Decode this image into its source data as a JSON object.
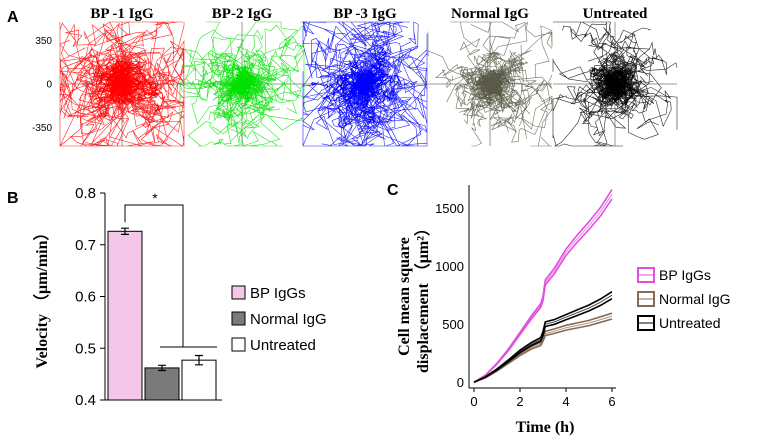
{
  "figure": {
    "panel_a_label": "A",
    "panel_b_label": "B",
    "panel_c_label": "C"
  },
  "chart_data": [
    {
      "panel": "A",
      "type": "scatter",
      "description_kind": "cell trajectory plots",
      "titles": [
        "BP -1 IgG",
        "BP-2 IgG",
        "BP -3 IgG",
        "Normal IgG",
        "Untreated"
      ],
      "colors": [
        "#ff0000",
        "#00e000",
        "#0000ff",
        "#5a5a48",
        "#000000"
      ],
      "spread": [
        1.0,
        0.55,
        0.9,
        0.55,
        0.6
      ],
      "ytick_labels": [
        "350",
        "0",
        "-350"
      ],
      "ytick_values": [
        350,
        0,
        -350
      ],
      "ylim": [
        -500,
        500
      ],
      "xlim": [
        -500,
        500
      ]
    },
    {
      "panel": "B",
      "type": "bar",
      "categories": [
        "BP IgGs",
        "Normal IgG",
        "Untreated"
      ],
      "values": [
        0.726,
        0.462,
        0.477
      ],
      "errors": [
        0.006,
        0.005,
        0.009
      ],
      "colors": [
        "#f4c6e8",
        "#7a7a7a",
        "#ffffff"
      ],
      "ylabel": "Velocity （μm/min）",
      "ylim": [
        0.4,
        0.8
      ],
      "yticks": [
        0.4,
        0.5,
        0.6,
        0.7,
        0.8
      ],
      "ytick_labels": [
        "0.4",
        "0.5",
        "0.6",
        "0.7",
        "0.8"
      ],
      "significance": "*",
      "legend": [
        "BP IgGs",
        "Normal IgG",
        "Untreated"
      ]
    },
    {
      "panel": "C",
      "type": "line",
      "xlabel": "Time (h)",
      "ylabel_line1": "Cell mean square",
      "ylabel_line2": "displacement （μm²）",
      "xlim": [
        0,
        6
      ],
      "ylim": [
        -50,
        1700
      ],
      "xticks": [
        0,
        2,
        4,
        6
      ],
      "xtick_labels": [
        "0",
        "2",
        "4",
        "6"
      ],
      "yticks": [
        0,
        500,
        1000,
        1500
      ],
      "ytick_labels": [
        "0",
        "500",
        "1000",
        "1500"
      ],
      "x": [
        0,
        0.5,
        1,
        1.5,
        2,
        2.5,
        2.9,
        3.0,
        3.1,
        3.5,
        4,
        4.5,
        5,
        5.5,
        6
      ],
      "series": [
        {
          "name": "BP IgGs",
          "color": "#e050e0",
          "values": [
            0,
            60,
            160,
            280,
            420,
            560,
            660,
            720,
            860,
            960,
            1120,
            1240,
            1350,
            1470,
            1620
          ],
          "band": 40
        },
        {
          "name": "Normal IgG",
          "color": "#8a6a50",
          "values": [
            0,
            40,
            100,
            170,
            240,
            300,
            330,
            370,
            420,
            440,
            470,
            490,
            510,
            540,
            570
          ],
          "band": 25
        },
        {
          "name": "Untreated",
          "color": "#000000",
          "values": [
            0,
            45,
            110,
            185,
            265,
            330,
            370,
            420,
            500,
            520,
            560,
            600,
            640,
            690,
            750
          ],
          "band": 30
        }
      ],
      "legend": [
        "BP IgGs",
        "Normal IgG",
        "Untreated"
      ]
    }
  ]
}
